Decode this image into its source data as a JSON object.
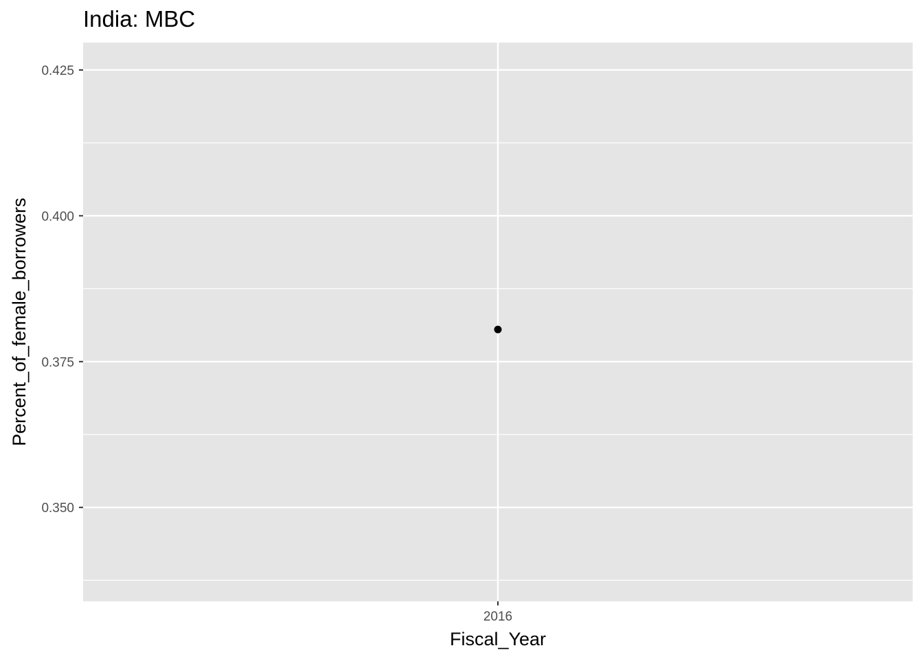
{
  "chart_data": {
    "type": "scatter",
    "title": "India:  MBC",
    "xlabel": "Fiscal_Year",
    "ylabel": "Percent_of_female_borrowers",
    "x_categories": [
      "2016"
    ],
    "points": [
      {
        "x": "2016",
        "y": 0.3805
      }
    ],
    "ylim": [
      0.3339,
      0.4297
    ],
    "y_major_ticks": [
      0.35,
      0.375,
      0.4,
      0.425
    ],
    "y_tick_labels": [
      "0.350",
      "0.375",
      "0.400",
      "0.425"
    ],
    "y_minor_ticks": [
      0.3375,
      0.3625,
      0.3875,
      0.4125
    ],
    "grid": true,
    "panel_color": "#e5e5e5",
    "grid_color": "#ffffff",
    "point_color": "#000000",
    "tick_color": "#333333"
  }
}
